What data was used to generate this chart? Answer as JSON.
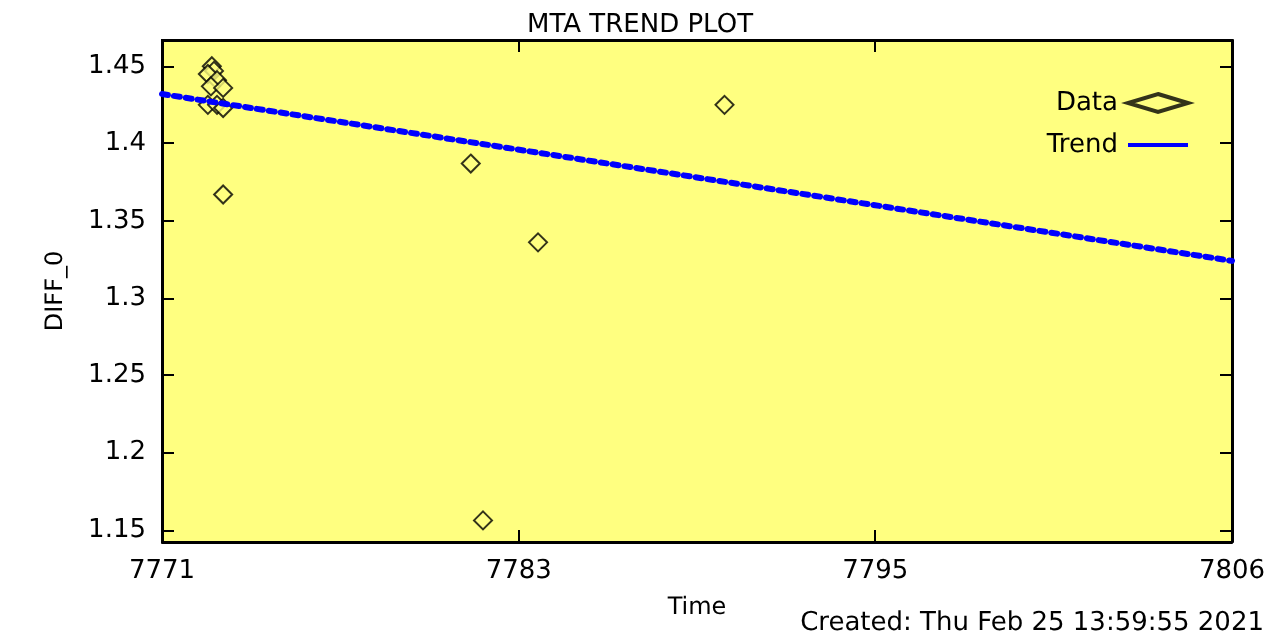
{
  "chart_data": {
    "type": "scatter",
    "title": "MTA TREND PLOT",
    "xlabel": "Time",
    "ylabel": "DIFF_0",
    "annotations": [
      "Created: Thu Feb 25 13:59:55 2021"
    ],
    "xlim": [
      7771.4,
      7806.4
    ],
    "ylim": [
      1.142,
      1.467
    ],
    "xticks": [
      {
        "value": 7771.4,
        "label": "7771"
      },
      {
        "value": 7783.07,
        "label": "7783"
      },
      {
        "value": 7794.73,
        "label": "7795"
      },
      {
        "value": 7806.4,
        "label": "7806"
      }
    ],
    "yticks": [
      1.15,
      1.2,
      1.25,
      1.3,
      1.35,
      1.4,
      1.45
    ],
    "grid": false,
    "legend": "top right",
    "series": [
      {
        "name": "Data",
        "marker": "diamond",
        "color": "#000000",
        "x": [
          7773.03,
          7773.1,
          7772.9,
          7773.2,
          7773.0,
          7773.4,
          7772.9,
          7773.2,
          7773.4,
          7773.4,
          7781.5,
          7781.9,
          7783.7,
          7789.8
        ],
        "values": [
          1.45,
          1.447,
          1.445,
          1.441,
          1.437,
          1.436,
          1.425,
          1.425,
          1.423,
          1.367,
          1.387,
          1.156,
          1.336,
          1.425
        ]
      },
      {
        "name": "Trend",
        "type": "line",
        "marker": "none",
        "line_style": "dotted",
        "color": "#0000ff",
        "x": [
          7771.4,
          7806.4
        ],
        "values": [
          1.432,
          1.324
        ]
      }
    ]
  }
}
